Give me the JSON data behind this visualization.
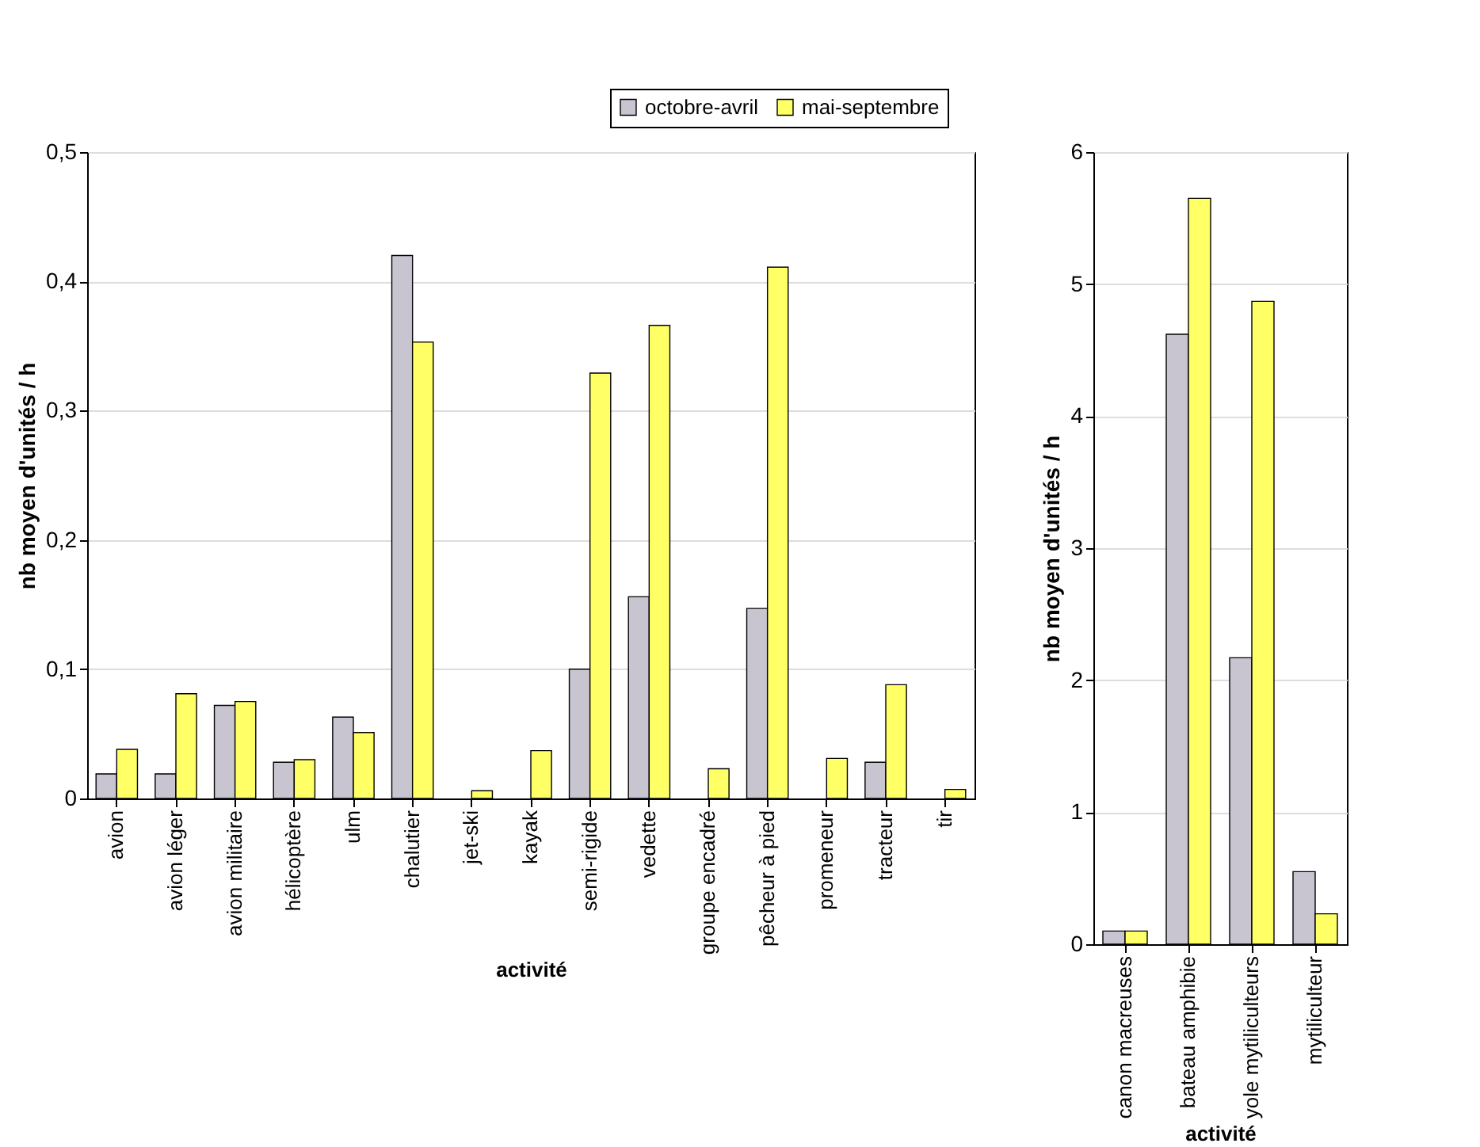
{
  "chart_data": [
    {
      "type": "bar",
      "xlabel": "activité",
      "ylabel": "nb moyen d'unités / h",
      "categories": [
        "avion",
        "avion léger",
        "avion militaire",
        "hélicoptère",
        "ulm",
        "chalutier",
        "jet-ski",
        "kayak",
        "semi-rigide",
        "vedette",
        "groupe encadré",
        "pêcheur à pied",
        "promeneur",
        "tracteur",
        "tir"
      ],
      "series": [
        {
          "name": "octobre-avril",
          "color": "#c8c4d0",
          "values": [
            0.019,
            0.019,
            0.072,
            0.028,
            0.063,
            0.42,
            null,
            null,
            0.1,
            0.156,
            null,
            0.147,
            null,
            0.028,
            null
          ]
        },
        {
          "name": "mai-septembre",
          "color": "#ffff66",
          "values": [
            0.038,
            0.081,
            0.075,
            0.03,
            0.051,
            0.353,
            0.006,
            0.037,
            0.329,
            0.366,
            0.023,
            0.411,
            0.031,
            0.088,
            0.007
          ]
        }
      ],
      "ylim": [
        0,
        0.5
      ],
      "yticks": [
        {
          "value": 0,
          "label": "0"
        },
        {
          "value": 0.1,
          "label": "0,1"
        },
        {
          "value": 0.2,
          "label": "0,2"
        },
        {
          "value": 0.3,
          "label": "0,3"
        },
        {
          "value": 0.4,
          "label": "0,4"
        },
        {
          "value": 0.5,
          "label": "0,5"
        }
      ],
      "grid": "y",
      "legend": "top right"
    },
    {
      "type": "bar",
      "xlabel": "activité",
      "ylabel": "nb moyen d'unités / h",
      "categories": [
        "canon macreuses",
        "bateau amphibie",
        "yole mytiliculteurs",
        "mytiliculteur"
      ],
      "series": [
        {
          "color": "#c8c4d0",
          "values": [
            0.1,
            4.62,
            2.17,
            0.55
          ]
        },
        {
          "color": "#ffff66",
          "values": [
            0.1,
            5.65,
            4.87,
            0.23
          ]
        }
      ],
      "ylim": [
        0,
        6
      ],
      "yticks": [
        0,
        1,
        2,
        3,
        4,
        5,
        6
      ],
      "grid": "y"
    }
  ]
}
